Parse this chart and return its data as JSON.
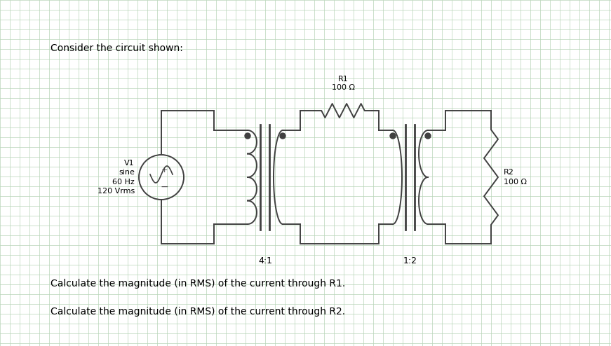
{
  "title": "Consider the circuit shown:",
  "bg_color": "#ffffff",
  "grid_color": "#b8d4b8",
  "circuit_color": "#404040",
  "line_width": 1.4,
  "question1": "Calculate the magnitude (in RMS) of the current through R1.",
  "question2": "Calculate the magnitude (in RMS) of the current through R2.",
  "v1_label": "V1\nsine\n60 Hz\n120 Vrms",
  "r1_label": "R1\n100 Ω",
  "r2_label": "R2\n100 Ω",
  "t1_label": "4:1",
  "t2_label": "1:2",
  "title_fontsize": 10,
  "label_fontsize": 8,
  "q_fontsize": 10
}
